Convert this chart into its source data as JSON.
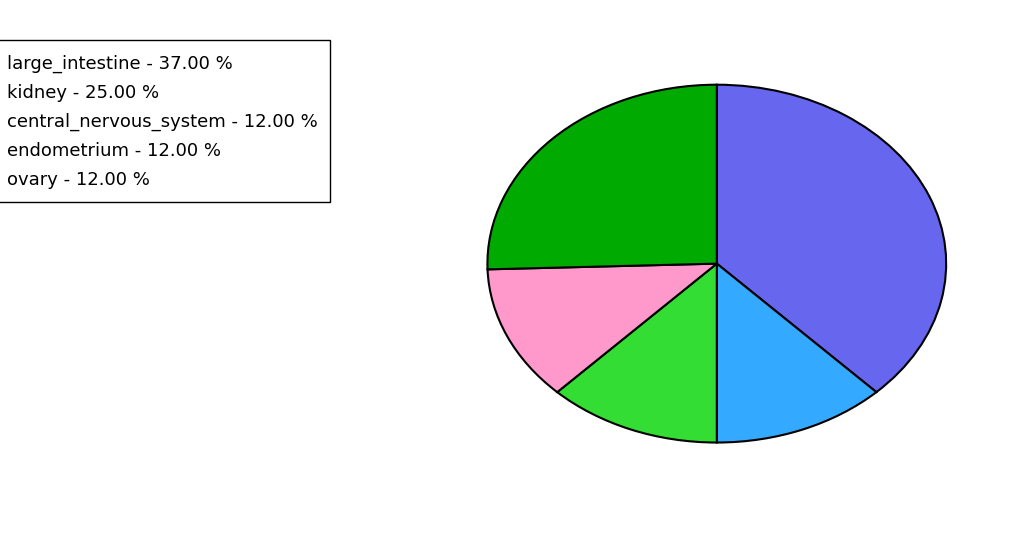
{
  "labels": [
    "large_intestine",
    "ovary",
    "endometrium",
    "central_nervous_system",
    "kidney"
  ],
  "values": [
    37.0,
    12.0,
    12.0,
    12.0,
    25.0
  ],
  "colors": [
    "#6666ee",
    "#33aaff",
    "#33dd33",
    "#ff99cc",
    "#00aa00"
  ],
  "legend_labels": [
    "large_intestine - 37.00 %",
    "kidney - 25.00 %",
    "central_nervous_system - 12.00 %",
    "endometrium - 12.00 %",
    "ovary - 12.00 %"
  ],
  "legend_colors": [
    "#6666ee",
    "#00aa00",
    "#ff99cc",
    "#33dd33",
    "#33aaff"
  ],
  "startangle": 90,
  "figsize": [
    10.24,
    5.38
  ],
  "dpi": 100
}
